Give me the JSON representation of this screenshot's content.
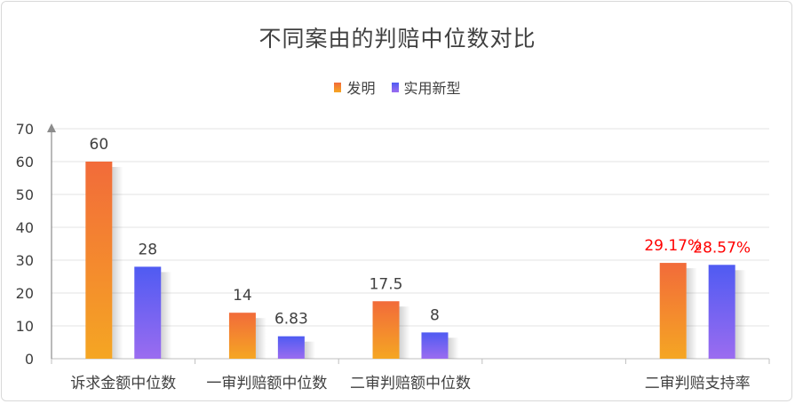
{
  "chart_data": {
    "type": "bar",
    "title": "不同案由的判赔中位数对比",
    "categories": [
      "诉求金额中位数",
      "一审判赔额中位数",
      "二审判赔额中位数",
      "",
      "二审判赔支持率"
    ],
    "series": [
      {
        "name": "发明",
        "values": [
          60,
          14,
          17.5,
          null,
          29.17
        ],
        "labels": [
          "60",
          "14",
          "17.5",
          "",
          "29.17%"
        ],
        "color_top": "#f26b3a",
        "color_bottom": "#f5a623"
      },
      {
        "name": "实用新型",
        "values": [
          28,
          6.83,
          8,
          null,
          28.57
        ],
        "labels": [
          "28",
          "6.83",
          "8",
          "",
          "28.57%"
        ],
        "color_top": "#4f5bf2",
        "color_bottom": "#9b6cf0"
      }
    ],
    "yticks": [
      "0",
      "10",
      "20",
      "30",
      "40",
      "50",
      "60",
      "70"
    ],
    "ylim": [
      0,
      70
    ],
    "grid": true,
    "legend_position": "top",
    "highlight_label_color": "#ff0000",
    "highlight_category_index": 4
  }
}
